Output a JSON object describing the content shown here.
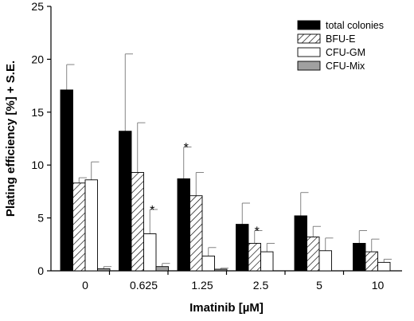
{
  "chart_data": {
    "type": "bar",
    "title": "",
    "xlabel": "Imatinib [µM]",
    "ylabel": "Plating efficiency [%] + S.E.",
    "ylim": [
      0,
      25
    ],
    "yticks": [
      0,
      5,
      10,
      15,
      20,
      25
    ],
    "categories": [
      "0",
      "0.625",
      "1.25",
      "2.5",
      "5",
      "10"
    ],
    "legend_position": "top-right",
    "series": [
      {
        "name": "total colonies",
        "fill": "solid",
        "color": "#000000",
        "values": [
          17.1,
          13.2,
          8.7,
          4.4,
          5.2,
          2.6
        ],
        "errors": [
          2.4,
          7.3,
          3.0,
          2.0,
          2.2,
          1.2
        ],
        "significant": [
          false,
          false,
          true,
          false,
          false,
          false
        ]
      },
      {
        "name": "BFU-E",
        "fill": "hatched",
        "color": "#000000",
        "values": [
          8.3,
          9.3,
          7.1,
          2.6,
          3.2,
          1.8
        ],
        "errors": [
          0.5,
          4.7,
          2.2,
          1.2,
          1.0,
          1.2
        ],
        "significant": [
          false,
          false,
          false,
          true,
          false,
          false
        ]
      },
      {
        "name": "CFU-GM",
        "fill": "white",
        "color": "#ffffff",
        "values": [
          8.6,
          3.5,
          1.4,
          1.8,
          1.9,
          0.8
        ],
        "errors": [
          1.7,
          2.3,
          0.8,
          0.8,
          1.2,
          0.3
        ],
        "significant": [
          false,
          true,
          false,
          false,
          false,
          false
        ]
      },
      {
        "name": "CFU-Mix",
        "fill": "gray",
        "color": "#a0a0a0",
        "values": [
          0.2,
          0.4,
          0.15,
          0.0,
          0.0,
          0.0
        ],
        "errors": [
          0.2,
          0.3,
          0.1,
          0.0,
          0.0,
          0.0
        ],
        "significant": [
          false,
          false,
          false,
          false,
          false,
          false
        ]
      }
    ],
    "significance_marker": "*"
  }
}
